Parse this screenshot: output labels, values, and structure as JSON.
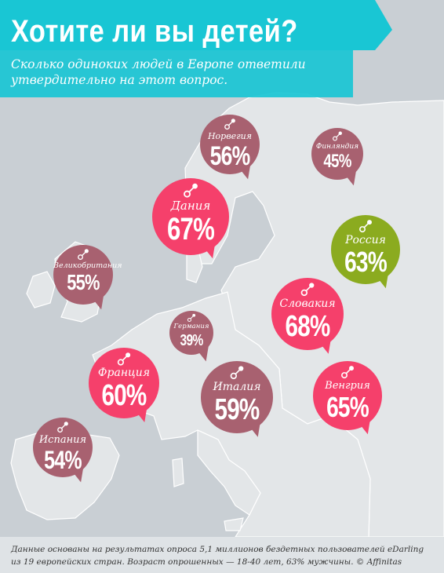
{
  "header": {
    "title": "Хотите ли вы детей?",
    "subtitle": "Сколько одиноких людей в Европе ответили утвердительно на этот вопрос."
  },
  "footer": {
    "note": "Данные основаны на результатах опроса 5,1 миллионов бездетных пользователей eDarling из 19 европейских стран. Возраст опрошенных — 18-40 лет, 63% мужчины. © Affinitas"
  },
  "colors": {
    "banner": "#19c6d4",
    "high": "#f5406b",
    "low": "#a86170",
    "russia": "#8bab1f",
    "land": "#e3e6e8",
    "sea": "#c9cfd4"
  },
  "icons": [
    "pacifier-icon"
  ],
  "chart_data": {
    "type": "map",
    "title": "Хотите ли вы детей?",
    "unit": "%",
    "regions": [
      {
        "name": "Норвегия",
        "value": 56
      },
      {
        "name": "Финляндия",
        "value": 45
      },
      {
        "name": "Дания",
        "value": 67
      },
      {
        "name": "Россия",
        "value": 63
      },
      {
        "name": "Великобритания",
        "value": 55
      },
      {
        "name": "Словакия",
        "value": 68
      },
      {
        "name": "Германия",
        "value": 39
      },
      {
        "name": "Франция",
        "value": 60
      },
      {
        "name": "Италия",
        "value": 59
      },
      {
        "name": "Венгрия",
        "value": 65
      },
      {
        "name": "Испания",
        "value": 54
      }
    ]
  }
}
